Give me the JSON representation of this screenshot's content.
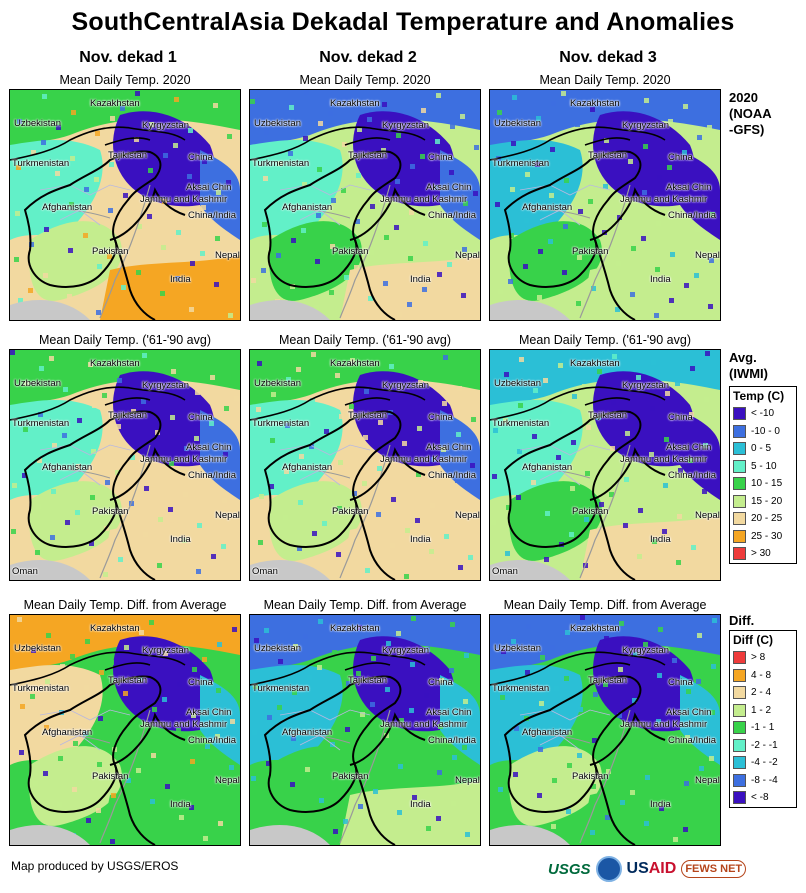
{
  "title": "SouthCentralAsia Dekadal Temperature and Anomalies",
  "columns": [
    "Nov. dekad 1",
    "Nov. dekad 2",
    "Nov. dekad 3"
  ],
  "rows": [
    {
      "map_title": "Mean Daily Temp. 2020",
      "label_lines": [
        "2020",
        "(NOAA",
        "-GFS)"
      ]
    },
    {
      "map_title": "Mean Daily Temp. ('61-'90 avg)",
      "label_lines": [
        "Avg.",
        "(IWMI)"
      ]
    },
    {
      "map_title": "Mean Daily Temp. Diff. from Average",
      "label_lines": [
        "Diff."
      ]
    }
  ],
  "place_names": {
    "kazakhstan": "Kazakhstan",
    "uzbekistan": "Uzbekistan",
    "kyrgyzstan": "Kyrgyzstan",
    "turkmenistan": "Turkmenistan",
    "tajikistan": "Tajikistan",
    "china": "China",
    "aksai_chin": "Aksai Chin",
    "jammu_kashmir": "Jammu and Kashmir",
    "china_india": "China/India",
    "afghanistan": "Afghanistan",
    "pakistan": "Pakistan",
    "nepal": "Nepal",
    "india": "India",
    "oman": "Oman"
  },
  "temp_legend": {
    "title": "Temp (C)",
    "items": [
      {
        "label": "< -10",
        "color": "#3a10c0"
      },
      {
        "label": "-10 - 0",
        "color": "#3d6fe0"
      },
      {
        "label": "0 - 5",
        "color": "#2bbfd6"
      },
      {
        "label": "5 - 10",
        "color": "#62f0c8"
      },
      {
        "label": "10 - 15",
        "color": "#38d24a"
      },
      {
        "label": "15 - 20",
        "color": "#c4ed8e"
      },
      {
        "label": "20 - 25",
        "color": "#f2d9a0"
      },
      {
        "label": "25 - 30",
        "color": "#f5a623"
      },
      {
        "label": "> 30",
        "color": "#ee3b3b"
      }
    ]
  },
  "diff_legend": {
    "title": "Diff (C)",
    "items": [
      {
        "label": "> 8",
        "color": "#ee3b3b"
      },
      {
        "label": "4 - 8",
        "color": "#f5a623"
      },
      {
        "label": "2 - 4",
        "color": "#f2d9a0"
      },
      {
        "label": "1 - 2",
        "color": "#c4ed8e"
      },
      {
        "label": "-1 - 1",
        "color": "#38d24a"
      },
      {
        "label": "-2 - -1",
        "color": "#62f0c8"
      },
      {
        "label": "-4 - -2",
        "color": "#2bbfd6"
      },
      {
        "label": "-8 - -4",
        "color": "#3d6fe0"
      },
      {
        "label": "< -8",
        "color": "#3a10c0"
      }
    ]
  },
  "credit": "Map produced by USGS/EROS",
  "logos": {
    "usgs": "USGS",
    "usaid_a": "US",
    "usaid_b": "AID",
    "fews": "FEWS NET"
  }
}
